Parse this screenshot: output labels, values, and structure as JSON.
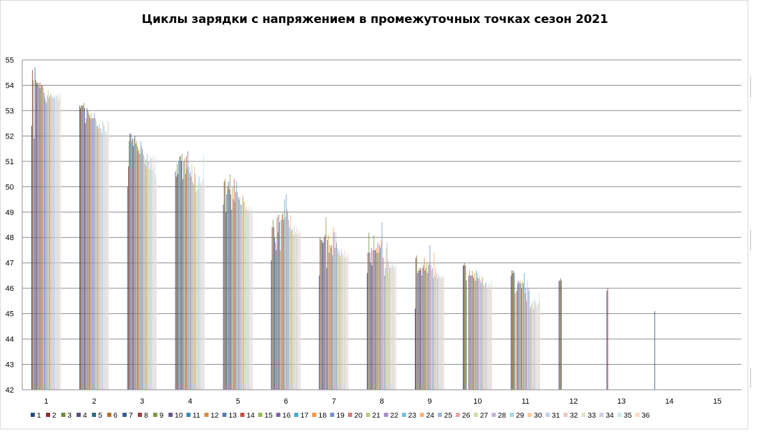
{
  "chart_data": {
    "type": "bar",
    "title": "Циклы зарядки с напряжением в промежуточных точках сезон 2021",
    "xlabel": "",
    "ylabel": "",
    "ylim": [
      42,
      55
    ],
    "yticks": [
      "42",
      "43",
      "44",
      "45",
      "46",
      "47",
      "48",
      "49",
      "50",
      "51",
      "52",
      "53",
      "54",
      "55"
    ],
    "grid": true,
    "legend_position": "bottom",
    "categories": [
      "1",
      "2",
      "3",
      "4",
      "5",
      "6",
      "7",
      "8",
      "9",
      "10",
      "11",
      "12",
      "13",
      "14",
      "15"
    ],
    "palette": [
      "#2e4a7a",
      "#8b3030",
      "#6e8a3a",
      "#5b4a7a",
      "#2e6e85",
      "#b0702e",
      "#3a5e8e",
      "#9e3e3c",
      "#7f9a48",
      "#6a5690",
      "#3b8aa8",
      "#d98e3a",
      "#5a7cb0",
      "#c0504d",
      "#9bbb59",
      "#8064a2",
      "#4bacc6",
      "#f79646",
      "#7893c4",
      "#cf7e7c",
      "#b5cd8a",
      "#a38fc0",
      "#76c1d6",
      "#f9b27a",
      "#9fb3d6",
      "#dfa8a6",
      "#cddcae",
      "#c2b4d6",
      "#a9d6e4",
      "#fbc9a3",
      "#c3cfe6",
      "#ebc7c5",
      "#dce7c7",
      "#d6cbe5",
      "#c9e6ef",
      "#fcd9bf"
    ],
    "series": [
      {
        "name": "1",
        "values": [
          52.4,
          53.2,
          50.0,
          50.6,
          49.3,
          47.1,
          46.5,
          46.6,
          45.2,
          46.9,
          46.5,
          46.3,
          45.9,
          45.1,
          null
        ]
      },
      {
        "name": "2",
        "values": [
          54.6,
          53.1,
          50.8,
          50.4,
          50.2,
          48.4,
          48.0,
          47.4,
          47.2,
          46.9,
          46.7,
          46.3,
          46.0,
          null,
          null
        ]
      },
      {
        "name": "3",
        "values": [
          54.2,
          53.2,
          51.8,
          50.9,
          50.3,
          48.7,
          47.9,
          48.2,
          47.3,
          47.0,
          46.6,
          46.4,
          null,
          null,
          null
        ]
      },
      {
        "name": "4",
        "values": [
          51.9,
          53.2,
          52.1,
          50.5,
          49.0,
          48.4,
          47.9,
          47.4,
          46.6,
          46.9,
          46.7,
          46.3,
          null,
          null,
          null
        ]
      },
      {
        "name": "5",
        "values": [
          54.7,
          53.2,
          52.1,
          51.0,
          49.7,
          48.0,
          47.8,
          47.0,
          46.7,
          46.3,
          46.6,
          null,
          null,
          null,
          null
        ]
      },
      {
        "name": "6",
        "values": [
          54.2,
          53.3,
          51.8,
          51.2,
          50.0,
          47.8,
          47.8,
          47.6,
          46.8,
          null,
          45.8,
          null,
          null,
          null,
          null
        ]
      },
      {
        "name": "7",
        "values": [
          54.1,
          53.1,
          51.9,
          51.2,
          50.2,
          47.5,
          48.0,
          46.9,
          46.7,
          null,
          null,
          null,
          null,
          null,
          null
        ]
      },
      {
        "name": "8",
        "values": [
          54.1,
          52.5,
          51.6,
          51.0,
          49.9,
          48.8,
          48.1,
          47.5,
          46.8,
          46.5,
          45.9,
          null,
          null,
          null,
          null
        ]
      },
      {
        "name": "9",
        "values": [
          54.0,
          52.7,
          51.9,
          51.3,
          50.5,
          48.2,
          48.8,
          48.1,
          46.5,
          46.7,
          46.2,
          null,
          null,
          null,
          null
        ]
      },
      {
        "name": "10",
        "values": [
          54.1,
          53.1,
          52.0,
          50.3,
          49.7,
          48.9,
          46.8,
          47.5,
          46.8,
          46.5,
          46.3,
          null,
          null,
          null,
          null
        ]
      },
      {
        "name": "11",
        "values": [
          53.9,
          53.0,
          51.7,
          51.0,
          49.1,
          48.6,
          47.9,
          47.5,
          46.9,
          46.5,
          46.2,
          null,
          null,
          null,
          null
        ]
      },
      {
        "name": "12",
        "values": [
          54.1,
          52.9,
          51.8,
          51.1,
          50.0,
          47.5,
          48.1,
          47.6,
          47.2,
          46.7,
          46.3,
          null,
          null,
          null,
          null
        ]
      },
      {
        "name": "13",
        "values": [
          54.0,
          52.8,
          51.6,
          50.5,
          49.5,
          48.7,
          47.4,
          47.4,
          46.7,
          46.5,
          46.2,
          null,
          null,
          null,
          null
        ]
      },
      {
        "name": "14",
        "values": [
          54.0,
          52.7,
          51.4,
          51.2,
          50.3,
          48.9,
          47.7,
          47.8,
          46.8,
          46.4,
          46.0,
          null,
          null,
          null,
          null
        ]
      },
      {
        "name": "15",
        "values": [
          53.9,
          52.9,
          51.5,
          50.7,
          49.4,
          49.0,
          47.6,
          47.4,
          47.0,
          46.6,
          46.3,
          null,
          null,
          null,
          null
        ]
      },
      {
        "name": "16",
        "values": [
          53.7,
          52.7,
          51.3,
          51.4,
          49.8,
          48.7,
          47.7,
          47.7,
          46.6,
          46.3,
          46.2,
          null,
          null,
          null,
          null
        ]
      },
      {
        "name": "17",
        "values": [
          53.5,
          52.7,
          51.8,
          50.8,
          50.2,
          49.5,
          47.3,
          47.6,
          46.9,
          46.7,
          46.6,
          null,
          null,
          null,
          null
        ]
      },
      {
        "name": "18",
        "values": [
          53.4,
          52.7,
          51.6,
          50.5,
          49.8,
          48.8,
          48.4,
          47.9,
          47.0,
          46.6,
          45.8,
          null,
          null,
          null,
          null
        ]
      },
      {
        "name": "19",
        "values": [
          53.3,
          52.9,
          51.5,
          50.6,
          49.6,
          49.7,
          48.2,
          48.6,
          47.7,
          46.4,
          46.0,
          null,
          null,
          null,
          null
        ]
      },
      {
        "name": "20",
        "values": [
          53.6,
          52.7,
          51.3,
          50.4,
          49.5,
          49.1,
          47.6,
          47.2,
          46.9,
          46.4,
          45.5,
          null,
          null,
          null,
          null
        ]
      },
      {
        "name": "21",
        "values": [
          53.8,
          52.6,
          51.2,
          50.9,
          49.6,
          49.0,
          48.2,
          47.2,
          46.7,
          46.5,
          46.3,
          null,
          null,
          null,
          null
        ]
      },
      {
        "name": "22",
        "values": [
          53.5,
          52.4,
          50.9,
          50.2,
          49.3,
          48.7,
          47.8,
          46.5,
          46.8,
          46.3,
          46.0,
          null,
          null,
          null,
          null
        ]
      },
      {
        "name": "23",
        "values": [
          53.6,
          52.4,
          51.1,
          50.1,
          49.3,
          48.4,
          47.6,
          46.8,
          46.4,
          46.2,
          45.9,
          null,
          null,
          null,
          null
        ]
      },
      {
        "name": "24",
        "values": [
          53.7,
          52.3,
          50.8,
          50.8,
          49.7,
          48.9,
          47.4,
          47.6,
          47.4,
          46.5,
          45.2,
          null,
          null,
          null,
          null
        ]
      },
      {
        "name": "25",
        "values": [
          53.6,
          52.5,
          51.3,
          50.5,
          49.6,
          48.3,
          47.5,
          47.8,
          46.5,
          46.4,
          45.3,
          null,
          null,
          null,
          null
        ]
      },
      {
        "name": "26",
        "values": [
          53.5,
          52.3,
          51.0,
          49.8,
          49.4,
          48.3,
          47.3,
          47.1,
          46.8,
          46.1,
          45.4,
          null,
          null,
          null,
          null
        ]
      },
      {
        "name": "27",
        "values": [
          53.6,
          52.3,
          51.0,
          50.1,
          49.4,
          48.4,
          47.2,
          47.0,
          46.6,
          46.2,
          45.5,
          null,
          null,
          null,
          null
        ]
      },
      {
        "name": "28",
        "values": [
          53.5,
          52.1,
          50.7,
          49.9,
          49.1,
          48.1,
          47.5,
          46.8,
          46.4,
          46.2,
          45.2,
          null,
          null,
          null,
          null
        ]
      },
      {
        "name": "29",
        "values": [
          53.6,
          52.6,
          51.2,
          50.4,
          49.2,
          48.5,
          47.4,
          46.9,
          46.6,
          46.3,
          45.6,
          null,
          null,
          null,
          null
        ]
      },
      {
        "name": "30",
        "values": [
          53.5,
          52.5,
          51.1,
          50.4,
          49.1,
          48.2,
          47.3,
          46.8,
          46.5,
          46.1,
          45.4,
          null,
          null,
          null,
          null
        ]
      },
      {
        "name": "31",
        "values": [
          53.6,
          52.4,
          50.7,
          50.1,
          49.0,
          48.1,
          47.2,
          47.1,
          46.4,
          46.0,
          45.5,
          null,
          null,
          null,
          null
        ]
      },
      {
        "name": "32",
        "values": [
          53.6,
          52.2,
          51.2,
          50.2,
          49.2,
          48.4,
          47.5,
          46.9,
          46.4,
          46.2,
          45.3,
          null,
          null,
          null,
          null
        ]
      },
      {
        "name": "33",
        "values": [
          53.5,
          52.2,
          51.1,
          50.0,
          49.0,
          48.2,
          47.3,
          46.9,
          46.5,
          46.1,
          45.4,
          null,
          null,
          null,
          null
        ]
      },
      {
        "name": "34",
        "values": [
          53.4,
          52.1,
          50.5,
          50.3,
          49.1,
          48.1,
          47.2,
          46.8,
          46.4,
          46.0,
          45.4,
          null,
          null,
          null,
          null
        ]
      },
      {
        "name": "35",
        "values": [
          53.7,
          52.6,
          51.2,
          51.3,
          49.2,
          48.3,
          47.3,
          47.0,
          46.5,
          46.3,
          45.8,
          null,
          null,
          null,
          null
        ]
      },
      {
        "name": "36",
        "values": [
          53.6,
          52.6,
          50.3,
          50.1,
          49.0,
          48.2,
          47.4,
          46.9,
          46.4,
          46.1,
          45.5,
          null,
          null,
          null,
          null
        ]
      }
    ]
  }
}
